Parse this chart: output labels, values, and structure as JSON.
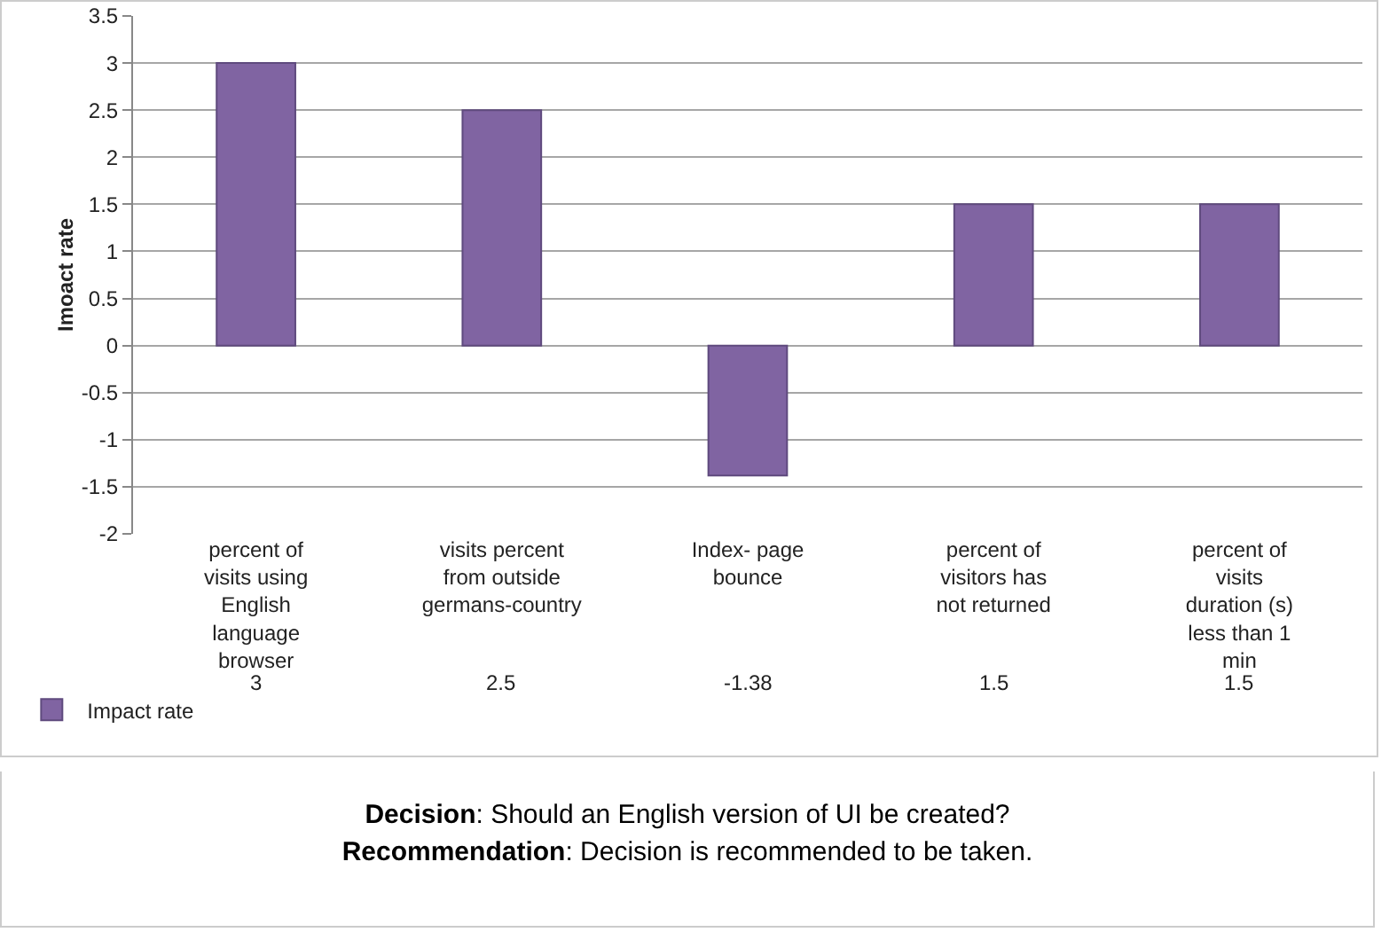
{
  "chart_data": {
    "type": "bar",
    "categories": [
      "percent of visits using English language browser",
      "visits percent from outside germans-country",
      "Index- page bounce",
      "percent of visitors has not returned",
      "percent of visits duration (s) less than 1 min"
    ],
    "series": [
      {
        "name": "Impact rate",
        "color": "#8064a2",
        "values": [
          3,
          2.5,
          -1.38,
          1.5,
          1.5
        ]
      }
    ],
    "ylabel": "Imoact rate",
    "ylim": [
      -2,
      3.5
    ],
    "yticks": [
      -2,
      -1.5,
      -1,
      -0.5,
      0,
      0.5,
      1,
      1.5,
      2,
      2.5,
      3,
      3.5
    ],
    "grid": "y",
    "legend": "bottom left",
    "data_labels": true,
    "annotations": [
      "Decision: Should an English version of UI be created?",
      "Recommendation: Decision is recommended to be taken."
    ]
  }
}
